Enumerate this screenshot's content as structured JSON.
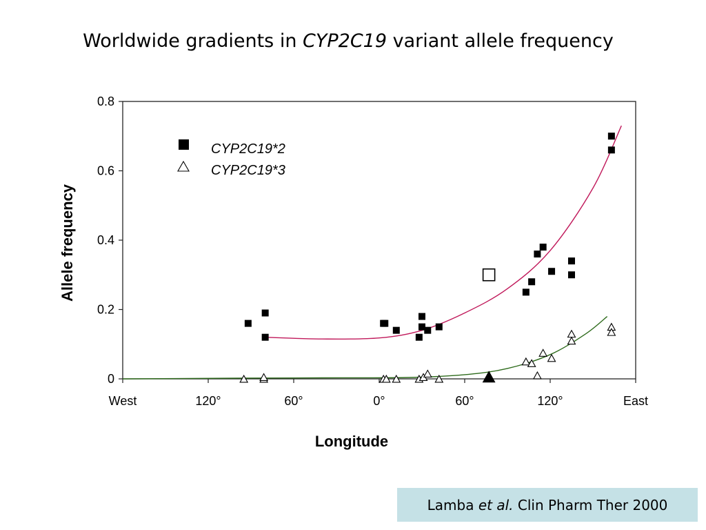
{
  "slide": {
    "title_pre": "Worldwide gradients in ",
    "title_gene": "CYP2C19",
    "title_post": " variant allele frequency",
    "citation_author": "Lamba ",
    "citation_etal": "et al.",
    "citation_rest": " Clin Pharm Ther 2000"
  },
  "chart_data": {
    "type": "scatter",
    "xlabel": "Longitude",
    "ylabel": "Allele frequency",
    "xlim": [
      -180,
      180
    ],
    "ylim": [
      0,
      0.8
    ],
    "x_ticks": [
      {
        "value": -180,
        "label": "West"
      },
      {
        "value": -120,
        "label": "120°"
      },
      {
        "value": -60,
        "label": "60°"
      },
      {
        "value": 0,
        "label": "0°"
      },
      {
        "value": 60,
        "label": "60°"
      },
      {
        "value": 120,
        "label": "120°"
      },
      {
        "value": 180,
        "label": "East"
      }
    ],
    "y_ticks": [
      {
        "value": 0,
        "label": "0"
      },
      {
        "value": 0.2,
        "label": "0.2"
      },
      {
        "value": 0.4,
        "label": "0.4"
      },
      {
        "value": 0.6,
        "label": "0.6"
      },
      {
        "value": 0.8,
        "label": "0.8"
      }
    ],
    "legend_position": "top-left",
    "series": [
      {
        "name": "CYP2C19*2",
        "marker": "filled-square",
        "color": "#000000",
        "points": [
          {
            "x": -92,
            "y": 0.16
          },
          {
            "x": -80,
            "y": 0.19
          },
          {
            "x": -80,
            "y": 0.12
          },
          {
            "x": 3,
            "y": 0.16
          },
          {
            "x": 4,
            "y": 0.16
          },
          {
            "x": 12,
            "y": 0.14
          },
          {
            "x": 28,
            "y": 0.12
          },
          {
            "x": 30,
            "y": 0.18
          },
          {
            "x": 30,
            "y": 0.15
          },
          {
            "x": 34,
            "y": 0.14
          },
          {
            "x": 42,
            "y": 0.15
          },
          {
            "x": 103,
            "y": 0.25
          },
          {
            "x": 107,
            "y": 0.28
          },
          {
            "x": 111,
            "y": 0.36
          },
          {
            "x": 115,
            "y": 0.38
          },
          {
            "x": 121,
            "y": 0.31
          },
          {
            "x": 135,
            "y": 0.34
          },
          {
            "x": 135,
            "y": 0.3
          },
          {
            "x": 163,
            "y": 0.7
          },
          {
            "x": 163,
            "y": 0.66
          }
        ],
        "open_points": [
          {
            "x": 77,
            "y": 0.3
          }
        ],
        "trend": [
          [
            -80,
            0.12
          ],
          [
            -40,
            0.115
          ],
          [
            0,
            0.118
          ],
          [
            30,
            0.14
          ],
          [
            60,
            0.19
          ],
          [
            90,
            0.26
          ],
          [
            120,
            0.37
          ],
          [
            150,
            0.55
          ],
          [
            170,
            0.73
          ]
        ]
      },
      {
        "name": "CYP2C19*3",
        "marker": "open-triangle",
        "color": "#000000",
        "points": [
          {
            "x": -95,
            "y": 0.0
          },
          {
            "x": -81,
            "y": 0.0
          },
          {
            "x": -81,
            "y": 0.005
          },
          {
            "x": 3,
            "y": 0.0
          },
          {
            "x": 5,
            "y": 0.0
          },
          {
            "x": 12,
            "y": 0.0
          },
          {
            "x": 28,
            "y": 0.0
          },
          {
            "x": 31,
            "y": 0.005
          },
          {
            "x": 34,
            "y": 0.015
          },
          {
            "x": 42,
            "y": 0.0
          },
          {
            "x": 103,
            "y": 0.05
          },
          {
            "x": 107,
            "y": 0.045
          },
          {
            "x": 111,
            "y": 0.01
          },
          {
            "x": 115,
            "y": 0.075
          },
          {
            "x": 121,
            "y": 0.06
          },
          {
            "x": 135,
            "y": 0.13
          },
          {
            "x": 135,
            "y": 0.11
          },
          {
            "x": 163,
            "y": 0.15
          },
          {
            "x": 163,
            "y": 0.135
          }
        ],
        "filled_points": [
          {
            "x": 77,
            "y": 0.0
          }
        ],
        "trend": [
          [
            -180,
            0.0
          ],
          [
            -100,
            0.002
          ],
          [
            -40,
            0.003
          ],
          [
            20,
            0.004
          ],
          [
            60,
            0.012
          ],
          [
            90,
            0.03
          ],
          [
            120,
            0.07
          ],
          [
            145,
            0.13
          ],
          [
            160,
            0.18
          ]
        ]
      }
    ]
  },
  "colors": {
    "series2_trend": "#c0185a",
    "series3_trend": "#2e6b1c",
    "axis": "#000000",
    "citation_bg": "#c5e1e6"
  }
}
